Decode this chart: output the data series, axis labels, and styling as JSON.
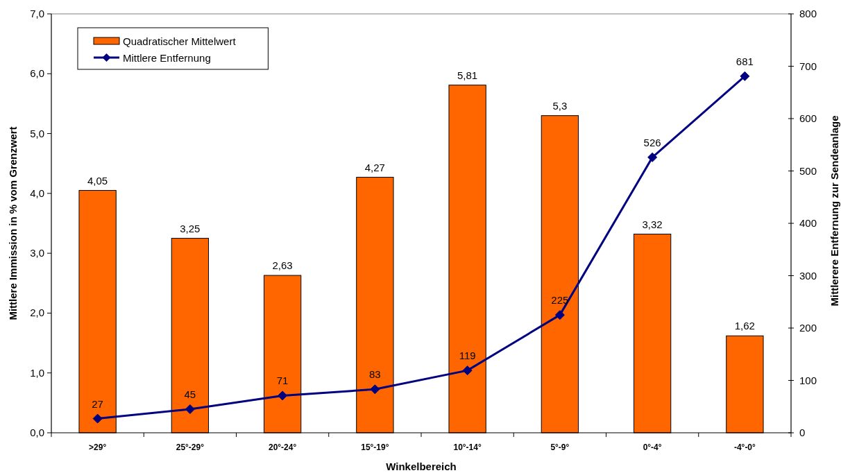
{
  "chart_data": {
    "type": "bar",
    "xlabel": "Winkelbereich",
    "ylabel": "Mittlere Immission in % vom Grenzwert",
    "y2label": "Mittlerere Entfernung zur Sendeanlage",
    "categories": [
      ">29°",
      "25°-29°",
      "20°-24°",
      "15°-19°",
      "10°-14°",
      "5°-9°",
      "0°-4°",
      "-4°-0°"
    ],
    "series": [
      {
        "name": "Quadratischer Mittelwert",
        "color": "#ff6600",
        "values": [
          4.05,
          3.25,
          2.63,
          4.27,
          5.81,
          5.3,
          3.32,
          1.62
        ],
        "value_labels": [
          "4,05",
          "3,25",
          "2,63",
          "4,27",
          "5,81",
          "5,3",
          "3,32",
          "1,62"
        ]
      },
      {
        "name": "Mittlere Entfernung",
        "type": "line",
        "axis": "y2",
        "color": "#000080",
        "values": [
          27,
          45,
          71,
          83,
          119,
          225,
          526,
          681
        ],
        "value_labels": [
          "27",
          "45",
          "71",
          "83",
          "119",
          "225",
          "526",
          "681"
        ]
      }
    ],
    "ylim": [
      0,
      7
    ],
    "yticks": [
      {
        "value": 0,
        "label": "0,0"
      },
      {
        "value": 1,
        "label": "1,0"
      },
      {
        "value": 2,
        "label": "2,0"
      },
      {
        "value": 3,
        "label": "3,0"
      },
      {
        "value": 4,
        "label": "4,0"
      },
      {
        "value": 5,
        "label": "5,0"
      },
      {
        "value": 6,
        "label": "6,0"
      },
      {
        "value": 7,
        "label": "7,0"
      }
    ],
    "y2lim": [
      0,
      800
    ],
    "y2ticks": [
      0,
      100,
      200,
      300,
      400,
      500,
      600,
      700,
      800
    ],
    "marker": "diamond",
    "legend": "top left"
  }
}
